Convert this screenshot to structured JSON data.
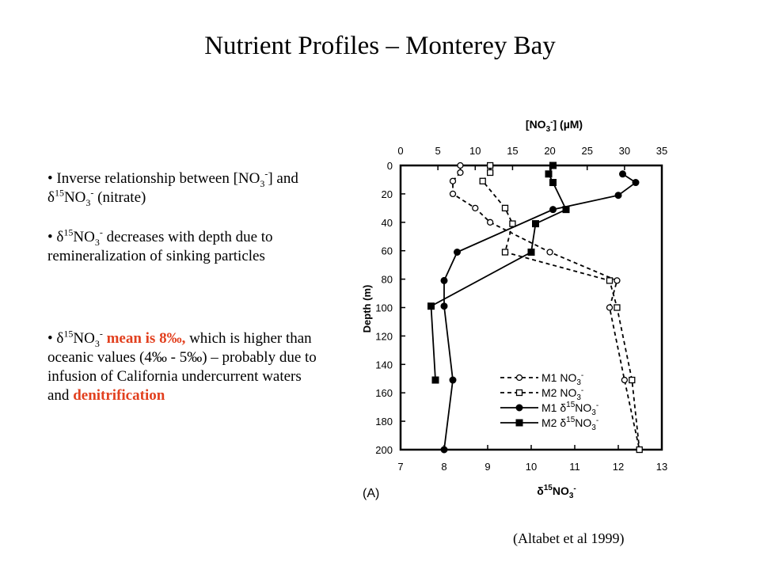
{
  "slide": {
    "title": "Nutrient Profiles – Monterey Bay",
    "citation": "(Altabet et al 1999)"
  },
  "bullets": {
    "b1": {
      "p1": "Inverse relationship between [NO",
      "p2": "3",
      "p3": "-",
      "p4": "] and ",
      "p5": "δ",
      "p6": "15",
      "p7": "NO",
      "p8": "3",
      "p9": "-",
      "p10": " (nitrate)"
    },
    "b2": {
      "p1": "δ",
      "p2": "15",
      "p3": "NO",
      "p4": "3",
      "p5": "-",
      "p6": " decreases with depth due to remineralization of sinking particles"
    },
    "b3": {
      "p1": "δ",
      "p2": "15",
      "p3": "NO",
      "p4": "3",
      "p5": "-",
      "p6": " mean is 8‰,",
      "p7": " which is higher than oceanic values (4‰ - 5‰) – probably due to infusion of California undercurrent waters and ",
      "p8": "denitrification"
    }
  },
  "chart_data": {
    "type": "line",
    "panel_label": "(A)",
    "top_axis": {
      "label_pre": "[NO",
      "label_sub": "3",
      "label_sup": "-",
      "label_post": "] (µM)",
      "range": [
        0,
        35
      ],
      "ticks": [
        "0",
        "5",
        "10",
        "15",
        "20",
        "25",
        "30",
        "35"
      ]
    },
    "bottom_axis": {
      "label_pre": "δ",
      "label_sup": "15",
      "label_post": "NO",
      "label_sub": "3",
      "label_sup2": "-",
      "range": [
        7,
        13
      ],
      "ticks": [
        "7",
        "8",
        "9",
        "10",
        "11",
        "12",
        "13"
      ]
    },
    "y_axis": {
      "label": "Depth (m)",
      "range": [
        0,
        200
      ],
      "inverted": true,
      "ticks": [
        "0",
        "20",
        "40",
        "60",
        "80",
        "100",
        "120",
        "140",
        "160",
        "180",
        "200"
      ]
    },
    "series": [
      {
        "name": "M1 NO3-",
        "legend_name": "M1 NO",
        "legend_sub": "3",
        "legend_sup": "-",
        "axis": "top",
        "marker": "circle-open",
        "line": "dashed",
        "points": [
          [
            8,
            0
          ],
          [
            8,
            5
          ],
          [
            7,
            11
          ],
          [
            7,
            20
          ],
          [
            10,
            30
          ],
          [
            12,
            40
          ],
          [
            20,
            61
          ],
          [
            29,
            81
          ],
          [
            28,
            100
          ],
          [
            30,
            151
          ],
          [
            32,
            200
          ]
        ]
      },
      {
        "name": "M2 NO3-",
        "legend_name": "M2 NO",
        "legend_sub": "3",
        "legend_sup": "-",
        "axis": "top",
        "marker": "square-open",
        "line": "dashed",
        "points": [
          [
            12,
            0
          ],
          [
            12,
            5
          ],
          [
            11,
            11
          ],
          [
            14,
            30
          ],
          [
            15,
            41
          ],
          [
            14,
            61
          ],
          [
            28,
            81
          ],
          [
            29,
            100
          ],
          [
            31,
            151
          ],
          [
            32,
            200
          ]
        ]
      },
      {
        "name": "M1 δ15NO3-",
        "legend_name": "M1 δ",
        "legend_sup1": "15",
        "legend_name2": "NO",
        "legend_sub": "3",
        "legend_sup": "-",
        "axis": "bottom",
        "marker": "circle-filled",
        "line": "solid",
        "points": [
          [
            12.1,
            6
          ],
          [
            12.4,
            12
          ],
          [
            12.0,
            21
          ],
          [
            10.5,
            31
          ],
          [
            8.3,
            61
          ],
          [
            8.0,
            81
          ],
          [
            8.0,
            99
          ],
          [
            8.2,
            151
          ],
          [
            8.0,
            200
          ]
        ]
      },
      {
        "name": "M2 δ15NO3-",
        "legend_name": "M2 δ",
        "legend_sup1": "15",
        "legend_name2": "NO",
        "legend_sub": "3",
        "legend_sup": "-",
        "axis": "bottom",
        "marker": "square-filled",
        "line": "solid",
        "points": [
          [
            10.5,
            0
          ],
          [
            10.4,
            6
          ],
          [
            10.5,
            12
          ],
          [
            10.8,
            31
          ],
          [
            10.1,
            41
          ],
          [
            10.0,
            61
          ],
          [
            7.7,
            99
          ],
          [
            7.8,
            151
          ]
        ]
      }
    ]
  }
}
